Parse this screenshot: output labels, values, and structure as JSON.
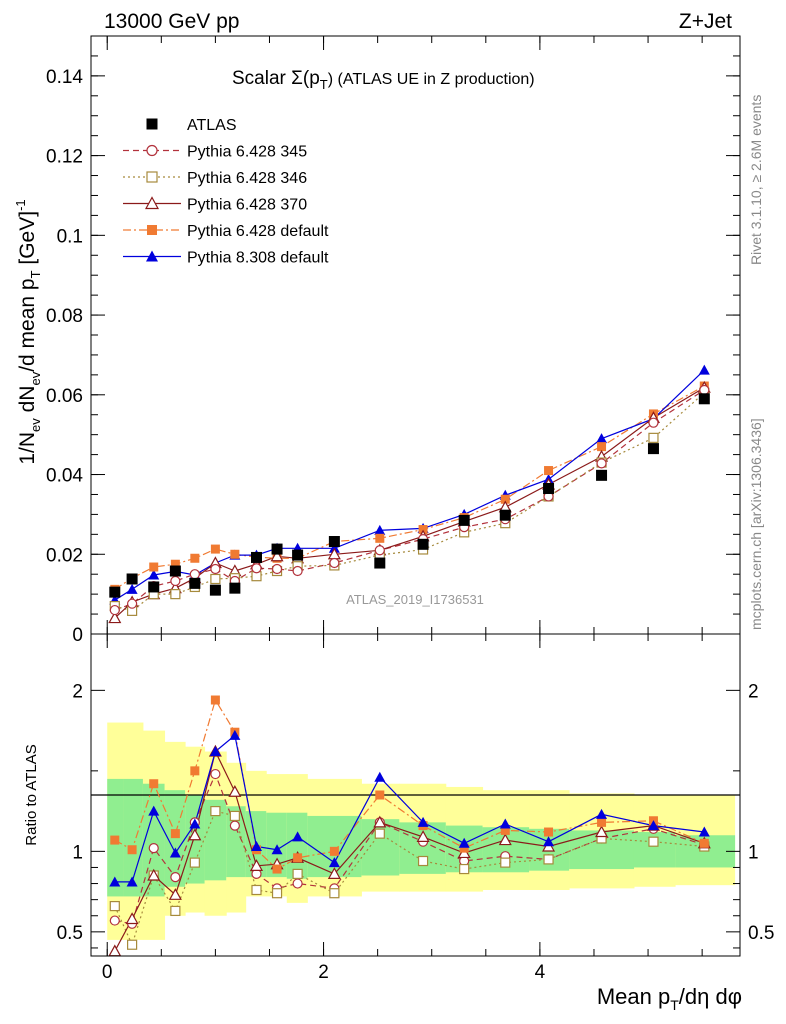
{
  "header": {
    "left": "13000 GeV pp",
    "right": "Z+Jet"
  },
  "side_labels": {
    "rivet": "Rivet 3.1.10, ≥ 2.6M events",
    "mcplots": "mcplots.cern.ch [arXiv:1306.3436]"
  },
  "colors": {
    "data": "#000000",
    "p345": "#b2323c",
    "p346": "#a68a3c",
    "p370": "#8b1a1a",
    "p6def": "#f07a32",
    "p8def": "#0000dd",
    "band_outer": "#ffff99",
    "band_inner": "#90ee90"
  },
  "chart_data": [
    {
      "type": "scatter",
      "panel": "main",
      "title_main": "Scalar Σ(p",
      "title_sub": "T",
      "title_end": ")  (ATLAS UE in Z production)",
      "ylabel": "1/N_ev dN_ev/d mean p_T [GeV]^-1",
      "watermark": "ATLAS_2019_I1736531",
      "xlim": [
        -0.15,
        5.85
      ],
      "ylim": [
        0,
        0.15
      ],
      "yticks": [
        0,
        0.02,
        0.04,
        0.06,
        0.08,
        0.1,
        0.12,
        0.14
      ],
      "ytick_labels": [
        "0",
        "0.02",
        "0.04",
        "0.06",
        "0.08",
        "0.1",
        "0.12",
        "0.14"
      ],
      "legend_position": "top-left",
      "x": [
        0.07,
        0.23,
        0.43,
        0.63,
        0.81,
        1.0,
        1.18,
        1.38,
        1.57,
        1.76,
        2.1,
        2.52,
        2.92,
        3.3,
        3.68,
        4.08,
        4.57,
        5.05,
        5.52
      ],
      "series": [
        {
          "key": "atlas",
          "name": "ATLAS",
          "style": "data",
          "values": [
            0.0105,
            0.0138,
            0.0118,
            0.0158,
            0.0127,
            0.011,
            0.0115,
            0.0192,
            0.0213,
            0.0198,
            0.0232,
            0.0178,
            0.0225,
            0.0285,
            0.0298,
            0.0365,
            0.0398,
            0.0465,
            0.059
          ]
        },
        {
          "key": "p345",
          "name": "Pythia 6.428 345",
          "style": "open-circle-dashed",
          "values": [
            0.006,
            0.0076,
            0.012,
            0.0133,
            0.015,
            0.0163,
            0.0133,
            0.0165,
            0.0163,
            0.0158,
            0.0178,
            0.021,
            0.0238,
            0.0268,
            0.0288,
            0.0345,
            0.0428,
            0.053,
            0.0612
          ]
        },
        {
          "key": "p346",
          "name": "Pythia 6.428 346",
          "style": "open-square-dotted",
          "values": [
            0.007,
            0.0058,
            0.01,
            0.01,
            0.0118,
            0.0138,
            0.014,
            0.0145,
            0.0158,
            0.017,
            0.0172,
            0.0198,
            0.0212,
            0.0255,
            0.0278,
            0.0345,
            0.043,
            0.0492,
            0.0605
          ]
        },
        {
          "key": "p370",
          "name": "Pythia 6.428 370",
          "style": "open-triangle-solid",
          "values": [
            0.004,
            0.008,
            0.01,
            0.0115,
            0.014,
            0.0178,
            0.0158,
            0.0175,
            0.0195,
            0.019,
            0.02,
            0.021,
            0.0245,
            0.0282,
            0.0318,
            0.0375,
            0.0445,
            0.0542,
            0.0618
          ]
        },
        {
          "key": "p6def",
          "name": "Pythia 6.428 default",
          "style": "filled-square-dashdot",
          "values": [
            0.0112,
            0.014,
            0.0168,
            0.0175,
            0.019,
            0.0213,
            0.02,
            0.0193,
            0.019,
            0.019,
            0.0232,
            0.024,
            0.0262,
            0.0292,
            0.0338,
            0.041,
            0.047,
            0.0552,
            0.0622
          ]
        },
        {
          "key": "p8def",
          "name": "Pythia 8.308 default",
          "style": "filled-triangle-solid",
          "values": [
            0.0085,
            0.0112,
            0.0148,
            0.0157,
            0.0148,
            0.0178,
            0.0198,
            0.0198,
            0.0215,
            0.0215,
            0.0215,
            0.026,
            0.0265,
            0.03,
            0.0348,
            0.0388,
            0.049,
            0.054,
            0.0662
          ]
        }
      ]
    },
    {
      "type": "line",
      "panel": "ratio",
      "ylabel": "Ratio to ATLAS",
      "xlabel": "Mean p_T/dη dφ",
      "xlabel_main": "Mean p",
      "xlabel_sub": "T",
      "xlabel_end": "/dη dφ",
      "ylim": [
        0.35,
        2.35
      ],
      "yticks": [
        0.5,
        1,
        2
      ],
      "ytick_labels": [
        "0.5",
        "1",
        "2"
      ],
      "xticks": [
        0,
        2,
        4
      ],
      "xtick_labels": [
        "0",
        "2",
        "4"
      ],
      "band_edges": [
        0.0,
        0.15,
        0.33,
        0.53,
        0.72,
        0.9,
        1.1,
        1.28,
        1.47,
        1.66,
        1.85,
        2.35,
        2.7,
        3.13,
        3.47,
        3.9,
        4.27,
        4.87,
        5.25,
        5.8
      ],
      "band_outer_lo": [
        0.45,
        0.45,
        0.45,
        0.6,
        0.62,
        0.6,
        0.62,
        0.72,
        0.72,
        0.68,
        0.72,
        0.75,
        0.75,
        0.75,
        0.76,
        0.76,
        0.77,
        0.78,
        0.79
      ],
      "band_outer_hi": [
        1.8,
        1.8,
        1.75,
        1.68,
        1.65,
        1.62,
        1.55,
        1.5,
        1.48,
        1.48,
        1.45,
        1.42,
        1.42,
        1.4,
        1.38,
        1.38,
        1.36,
        1.35,
        1.35
      ],
      "band_inner_lo": [
        0.72,
        0.72,
        0.72,
        0.78,
        0.8,
        0.82,
        0.84,
        0.84,
        0.84,
        0.83,
        0.84,
        0.85,
        0.86,
        0.87,
        0.87,
        0.88,
        0.89,
        0.9,
        0.9
      ],
      "band_inner_hi": [
        1.45,
        1.45,
        1.42,
        1.38,
        1.35,
        1.32,
        1.28,
        1.25,
        1.24,
        1.24,
        1.22,
        1.2,
        1.18,
        1.16,
        1.15,
        1.14,
        1.13,
        1.12,
        1.1
      ],
      "series": [
        {
          "key": "p345",
          "values": [
            0.57,
            0.55,
            1.02,
            0.84,
            1.18,
            1.48,
            1.16,
            0.86,
            0.77,
            0.8,
            0.77,
            1.18,
            1.06,
            0.94,
            0.97,
            0.95,
            1.08,
            1.14,
            1.04
          ]
        },
        {
          "key": "p346",
          "values": [
            0.66,
            0.42,
            0.85,
            0.63,
            0.93,
            1.25,
            1.22,
            0.76,
            0.74,
            0.86,
            0.74,
            1.11,
            0.94,
            0.89,
            0.93,
            0.95,
            1.08,
            1.06,
            1.03
          ]
        },
        {
          "key": "p370",
          "values": [
            0.38,
            0.58,
            0.85,
            0.73,
            1.1,
            1.62,
            1.37,
            0.91,
            0.92,
            0.96,
            0.86,
            1.18,
            1.09,
            0.99,
            1.07,
            1.03,
            1.12,
            1.16,
            1.05
          ]
        },
        {
          "key": "p6def",
          "values": [
            1.07,
            1.01,
            1.42,
            1.11,
            1.5,
            1.94,
            1.74,
            1.01,
            0.89,
            0.96,
            1.0,
            1.35,
            1.16,
            1.02,
            1.13,
            1.12,
            1.18,
            1.19,
            1.05
          ]
        },
        {
          "key": "p8def",
          "values": [
            0.81,
            0.81,
            1.25,
            0.99,
            1.17,
            1.62,
            1.72,
            1.03,
            1.01,
            1.09,
            0.93,
            1.46,
            1.18,
            1.05,
            1.17,
            1.06,
            1.23,
            1.16,
            1.12
          ]
        }
      ]
    }
  ]
}
